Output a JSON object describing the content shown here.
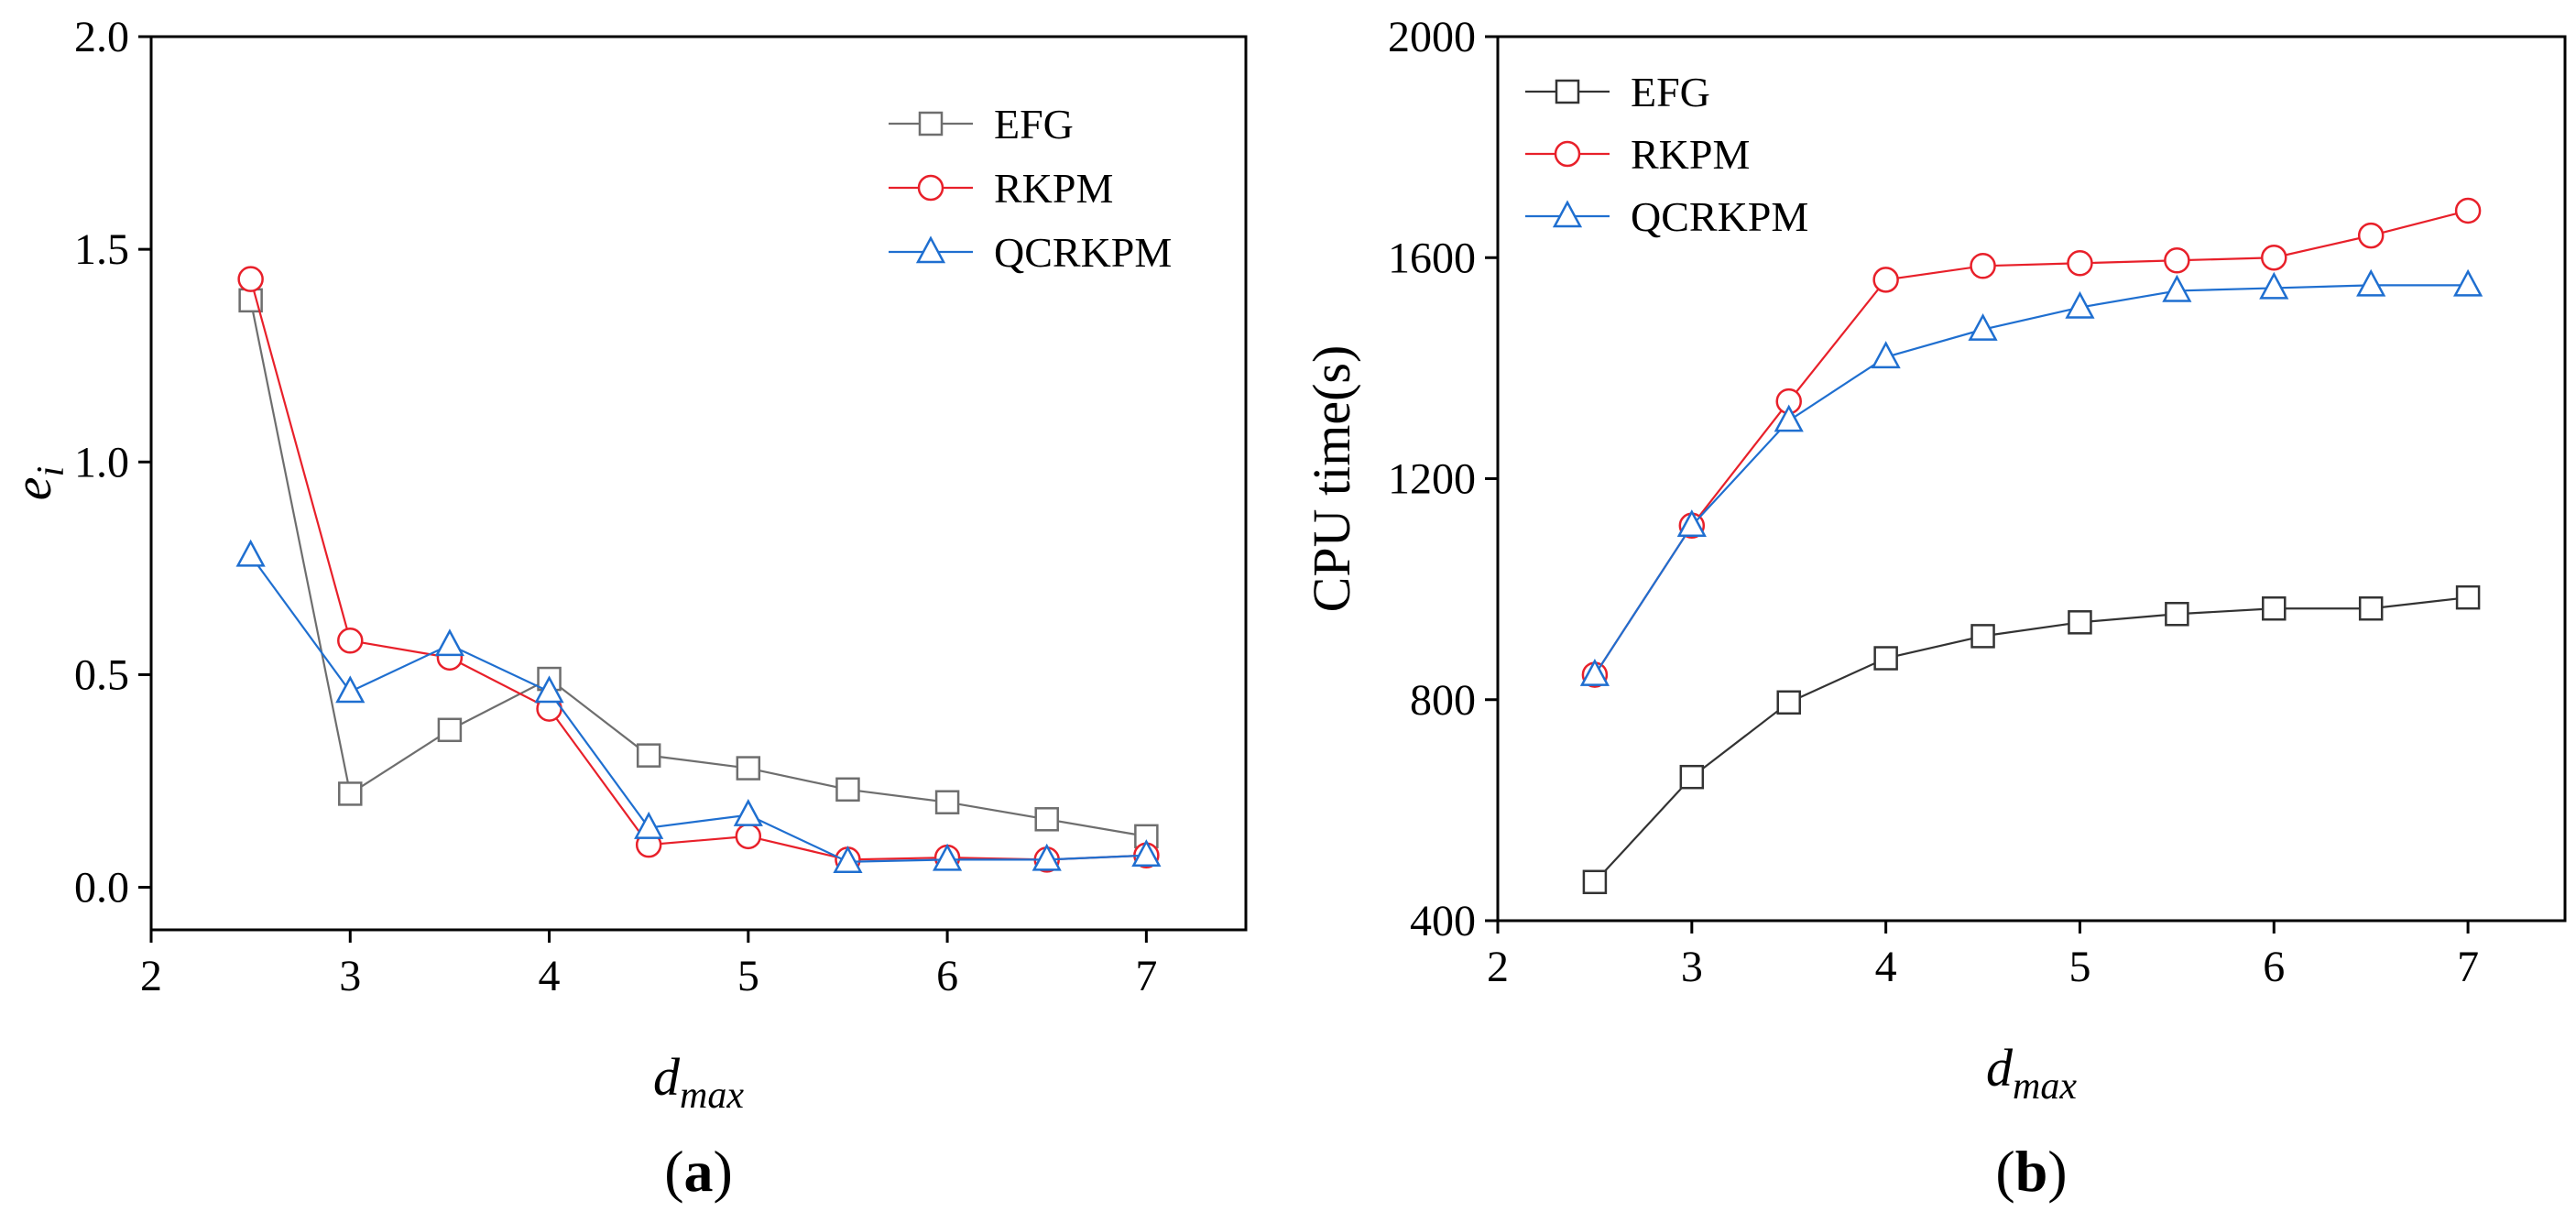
{
  "chart_data": [
    {
      "type": "line",
      "panel_label": "(a)",
      "panel_letter": "a",
      "xlabel_main": "d",
      "xlabel_sub": "max",
      "ylabel_main": "e",
      "ylabel_sub": "i",
      "xlim": [
        2,
        7.5
      ],
      "ylim": [
        -0.1,
        2.0
      ],
      "xticks": [
        2,
        3,
        4,
        5,
        6,
        7
      ],
      "yticks": [
        0.0,
        0.5,
        1.0,
        1.5,
        2.0
      ],
      "ytick_labels": [
        "0.0",
        "0.5",
        "1.0",
        "1.5",
        "2.0"
      ],
      "grid": false,
      "legend_position": "top-right",
      "x": [
        2.5,
        3,
        3.5,
        4,
        4.5,
        5,
        5.5,
        6,
        6.5,
        7
      ],
      "series": [
        {
          "name": "EFG",
          "color": "#6e6e6e",
          "marker": "square",
          "values": [
            1.38,
            0.22,
            0.37,
            0.49,
            0.31,
            0.28,
            0.23,
            0.2,
            0.16,
            0.12
          ]
        },
        {
          "name": "RKPM",
          "color": "#e8202a",
          "marker": "circle",
          "values": [
            1.43,
            0.58,
            0.54,
            0.42,
            0.1,
            0.12,
            0.065,
            0.07,
            0.065,
            0.075
          ]
        },
        {
          "name": "QCRKPM",
          "color": "#1f6fd0",
          "marker": "triangle",
          "values": [
            0.78,
            0.46,
            0.57,
            0.46,
            0.14,
            0.17,
            0.06,
            0.065,
            0.065,
            0.075
          ]
        }
      ]
    },
    {
      "type": "line",
      "panel_label": "(b)",
      "panel_letter": "b",
      "xlabel_main": "d",
      "xlabel_sub": "max",
      "ylabel": "CPU time(s)",
      "xlim": [
        2,
        7.5
      ],
      "ylim": [
        400,
        2000
      ],
      "xticks": [
        2,
        3,
        4,
        5,
        6,
        7
      ],
      "yticks": [
        400,
        800,
        1200,
        1600,
        2000
      ],
      "ytick_labels": [
        "400",
        "800",
        "1200",
        "1600",
        "2000"
      ],
      "grid": false,
      "legend_position": "top-left",
      "x": [
        2.5,
        3,
        3.5,
        4,
        4.5,
        5,
        5.5,
        6,
        6.5,
        7
      ],
      "series": [
        {
          "name": "EFG",
          "color": "#333333",
          "marker": "square",
          "values": [
            470,
            660,
            795,
            875,
            915,
            940,
            955,
            965,
            965,
            985
          ]
        },
        {
          "name": "RKPM",
          "color": "#e8202a",
          "marker": "circle",
          "values": [
            845,
            1115,
            1340,
            1560,
            1585,
            1590,
            1595,
            1600,
            1640,
            1685
          ]
        },
        {
          "name": "QCRKPM",
          "color": "#1f6fd0",
          "marker": "triangle",
          "values": [
            845,
            1115,
            1305,
            1420,
            1470,
            1510,
            1540,
            1545,
            1550,
            1550
          ]
        }
      ]
    }
  ]
}
